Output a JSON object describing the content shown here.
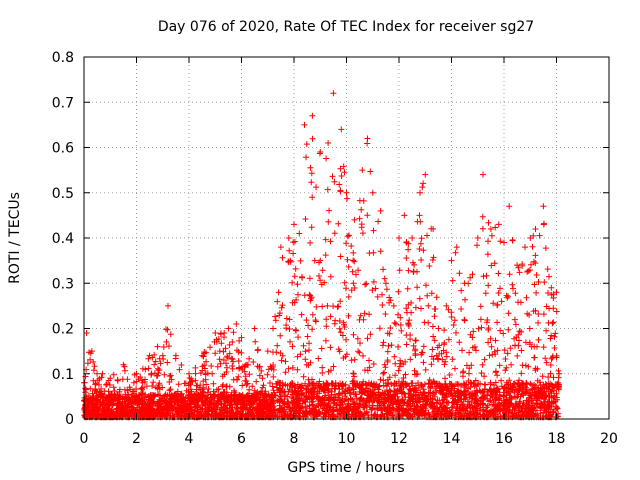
{
  "chart_data": {
    "type": "scatter",
    "title": "Day 076 of 2020, Rate Of TEC Index for receiver sg27",
    "xlabel": "GPS time / hours",
    "ylabel": "ROTI / TECUs",
    "xlim": [
      0,
      20
    ],
    "ylim": [
      0,
      0.8
    ],
    "xticks": [
      "0",
      "2",
      "4",
      "6",
      "8",
      "10",
      "12",
      "14",
      "16",
      "18",
      "20"
    ],
    "yticks": [
      "0",
      "0.1",
      "0.2",
      "0.3",
      "0.4",
      "0.5",
      "0.6",
      "0.7",
      "0.8"
    ],
    "grid": true,
    "marker": "+",
    "color": "#ff0000",
    "x_range_of_data": [
      0,
      18.1
    ],
    "envelope": [
      [
        0.0,
        0.08
      ],
      [
        0.1,
        0.19
      ],
      [
        0.3,
        0.15
      ],
      [
        0.5,
        0.1
      ],
      [
        0.7,
        0.1
      ],
      [
        1.0,
        0.09
      ],
      [
        1.5,
        0.12
      ],
      [
        2.0,
        0.1
      ],
      [
        2.5,
        0.14
      ],
      [
        2.8,
        0.16
      ],
      [
        3.0,
        0.14
      ],
      [
        3.2,
        0.25
      ],
      [
        3.5,
        0.14
      ],
      [
        4.0,
        0.1
      ],
      [
        4.5,
        0.14
      ],
      [
        5.0,
        0.19
      ],
      [
        5.5,
        0.2
      ],
      [
        5.8,
        0.21
      ],
      [
        6.0,
        0.18
      ],
      [
        6.2,
        0.12
      ],
      [
        6.5,
        0.2
      ],
      [
        6.8,
        0.09
      ],
      [
        7.0,
        0.15
      ],
      [
        7.2,
        0.2
      ],
      [
        7.5,
        0.38
      ],
      [
        7.8,
        0.4
      ],
      [
        8.0,
        0.43
      ],
      [
        8.2,
        0.41
      ],
      [
        8.4,
        0.65
      ],
      [
        8.7,
        0.67
      ],
      [
        9.0,
        0.59
      ],
      [
        9.3,
        0.61
      ],
      [
        9.5,
        0.72
      ],
      [
        9.8,
        0.64
      ],
      [
        10.0,
        0.5
      ],
      [
        10.3,
        0.44
      ],
      [
        10.6,
        0.55
      ],
      [
        10.8,
        0.62
      ],
      [
        11.0,
        0.5
      ],
      [
        11.3,
        0.46
      ],
      [
        11.5,
        0.3
      ],
      [
        11.8,
        0.25
      ],
      [
        12.0,
        0.4
      ],
      [
        12.2,
        0.45
      ],
      [
        12.5,
        0.4
      ],
      [
        12.8,
        0.5
      ],
      [
        13.0,
        0.54
      ],
      [
        13.3,
        0.42
      ],
      [
        13.5,
        0.2
      ],
      [
        13.8,
        0.25
      ],
      [
        14.0,
        0.35
      ],
      [
        14.2,
        0.38
      ],
      [
        14.5,
        0.3
      ],
      [
        14.8,
        0.32
      ],
      [
        15.0,
        0.4
      ],
      [
        15.2,
        0.54
      ],
      [
        15.5,
        0.42
      ],
      [
        15.8,
        0.43
      ],
      [
        16.0,
        0.39
      ],
      [
        16.2,
        0.47
      ],
      [
        16.5,
        0.34
      ],
      [
        16.8,
        0.38
      ],
      [
        17.0,
        0.4
      ],
      [
        17.2,
        0.42
      ],
      [
        17.5,
        0.47
      ],
      [
        17.8,
        0.29
      ],
      [
        18.0,
        0.28
      ],
      [
        18.1,
        0.1
      ]
    ]
  }
}
